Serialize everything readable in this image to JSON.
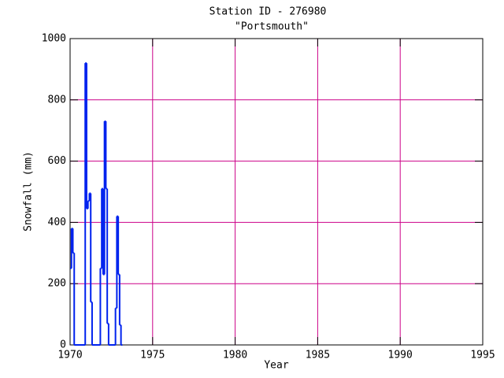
{
  "chart_data": {
    "type": "step",
    "title": "Station ID - 276980",
    "subtitle": "\"Portsmouth\"",
    "x_label": "Year",
    "y_label": "Snowfall (mm)",
    "series": [
      {
        "color": "#0022ee",
        "x": [
          1970.0,
          1970.083,
          1970.167,
          1970.25,
          1970.917,
          1971.0,
          1971.083,
          1971.167,
          1971.25,
          1971.333,
          1971.833,
          1971.917,
          1972.0,
          1972.083,
          1972.167,
          1972.25,
          1972.333,
          1972.75,
          1972.833,
          1972.917,
          1973.0,
          1973.083
        ],
        "values": [
          250,
          380,
          300,
          0,
          920,
          445,
          470,
          495,
          140,
          0,
          250,
          510,
          230,
          730,
          510,
          70,
          0,
          120,
          420,
          230,
          65,
          0
        ]
      }
    ],
    "xlim": [
      1970,
      1995
    ],
    "xticks": [
      1970,
      1975,
      1980,
      1985,
      1990,
      1995
    ],
    "ylim": [
      0,
      1000
    ],
    "yticks": [
      0,
      200,
      400,
      600,
      800,
      1000
    ],
    "grid": true,
    "grid_color": "#cc0088"
  }
}
